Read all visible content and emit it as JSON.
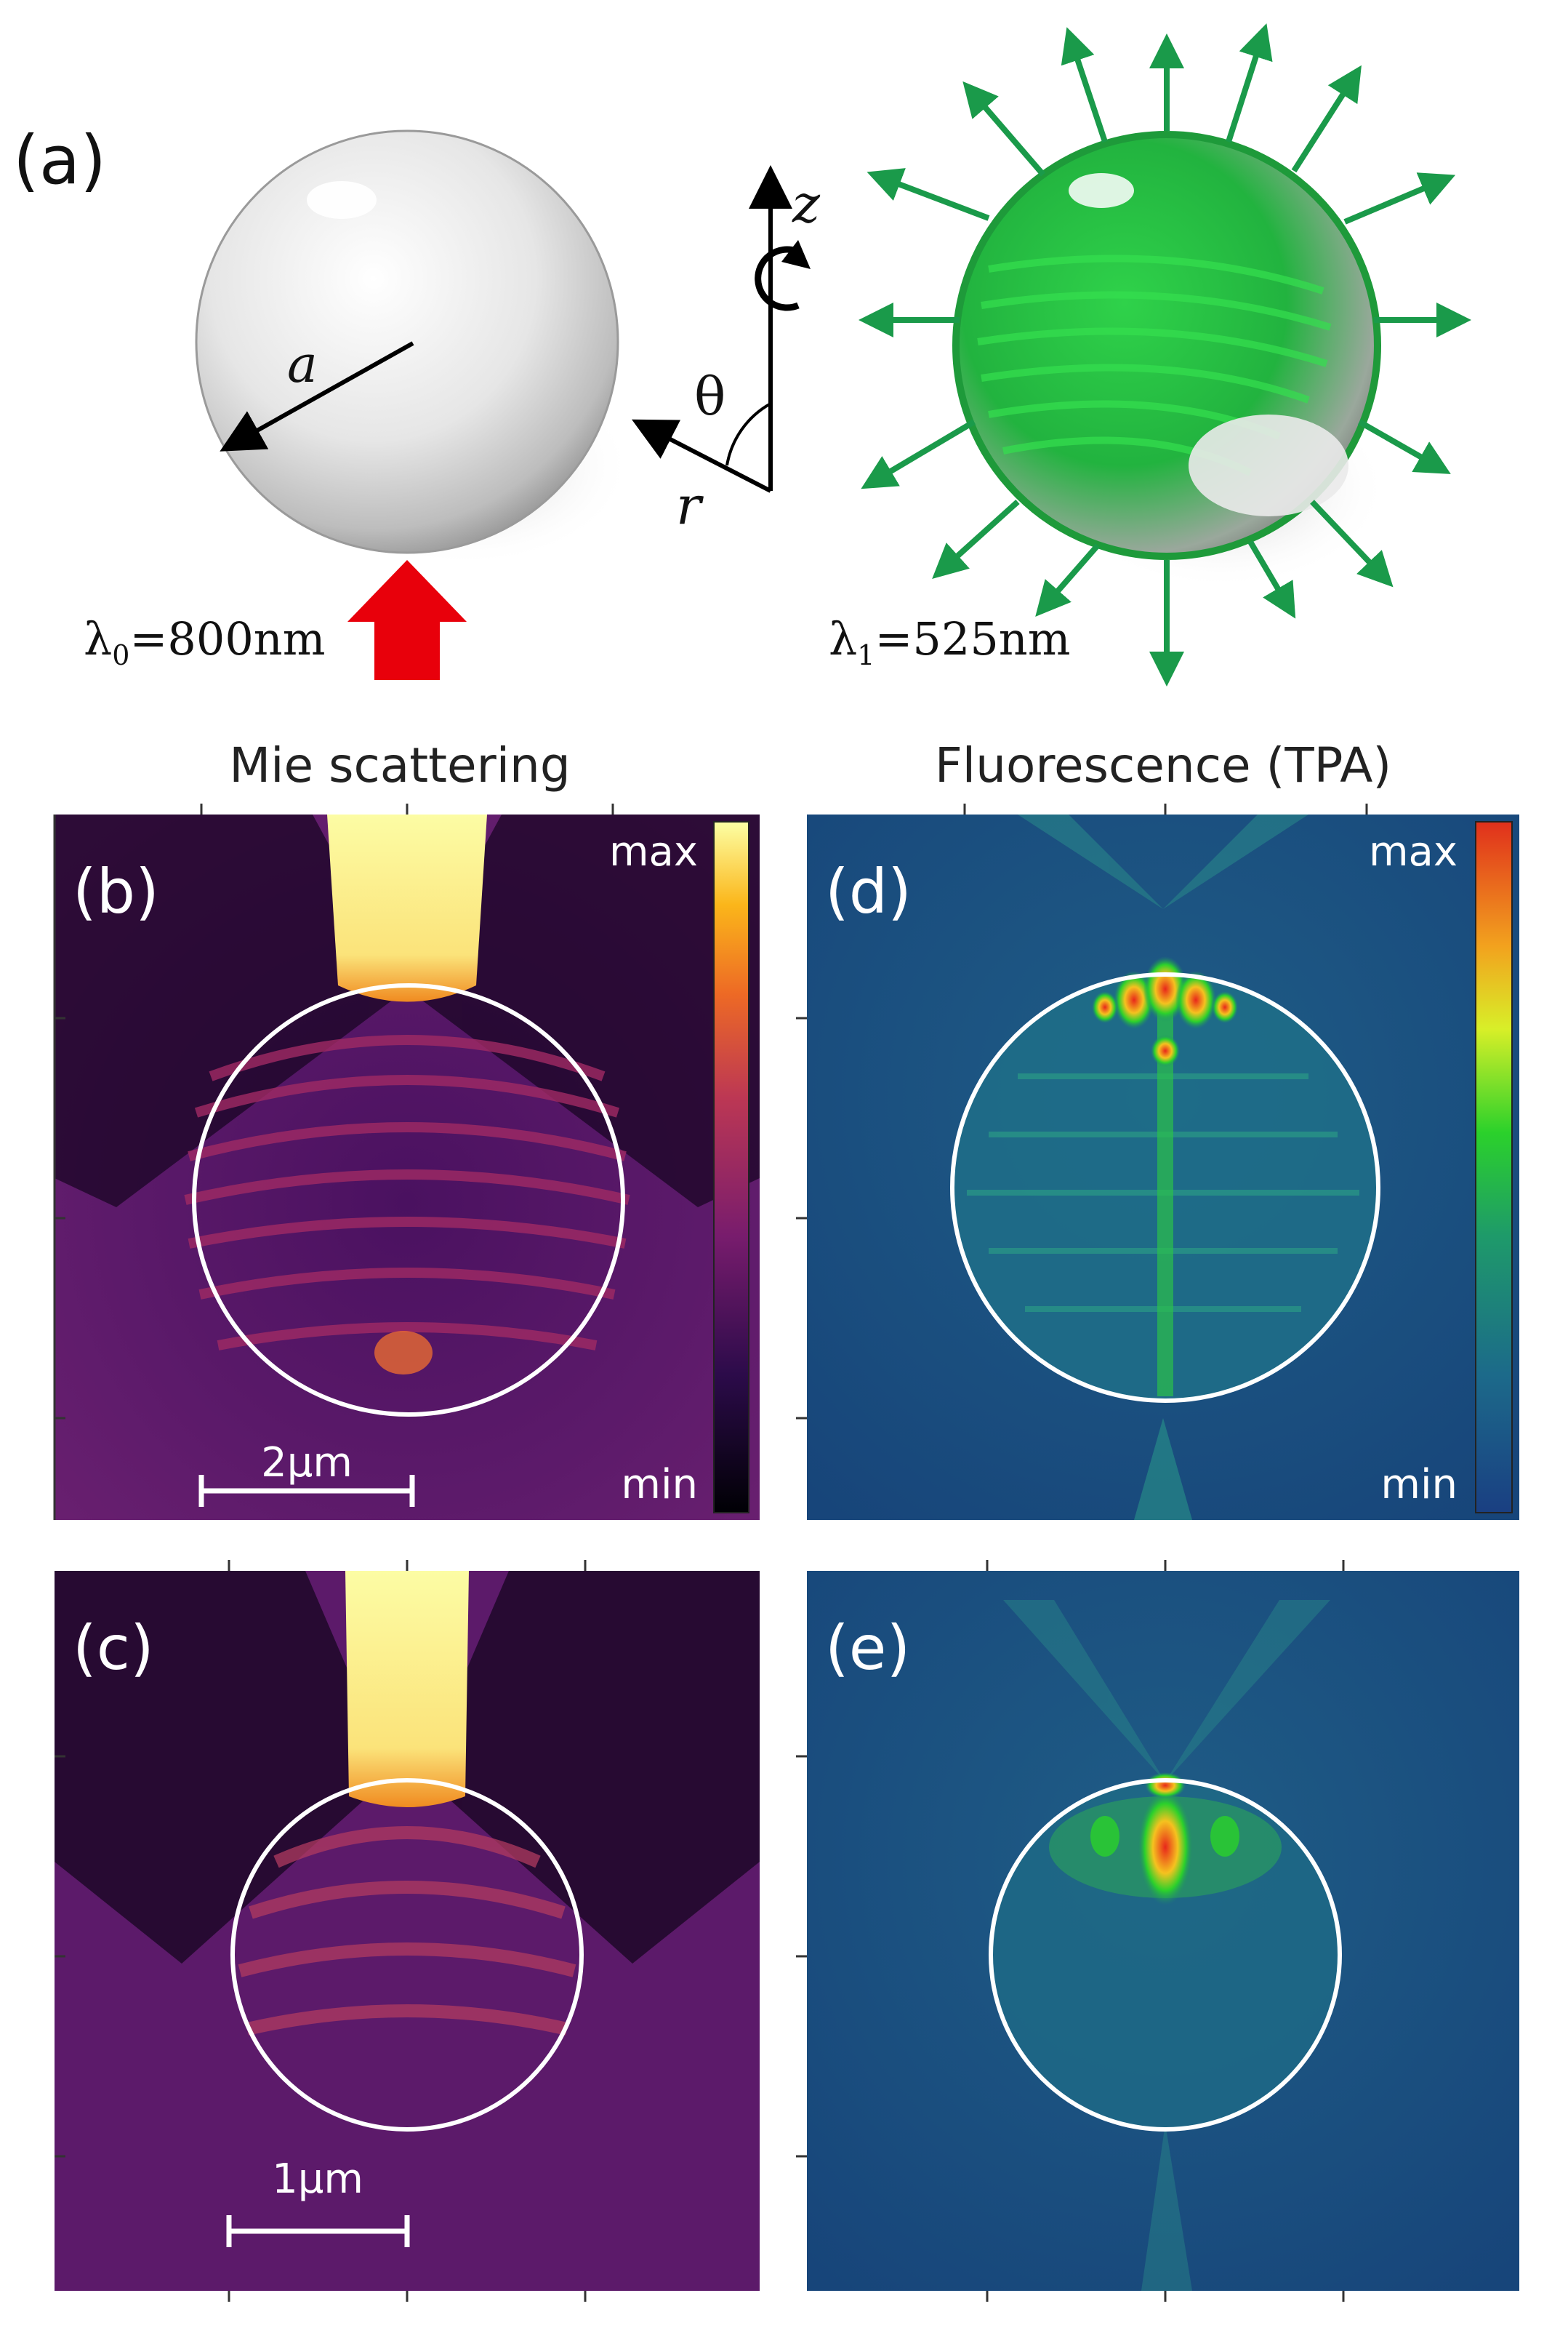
{
  "panel_a": {
    "label": "(a)",
    "radius_label": "a",
    "axis_z": "z",
    "axis_r": "r",
    "axis_theta": "θ",
    "lambda0": {
      "symbol": "λ",
      "sub": "0",
      "rest": "=800nm"
    },
    "lambda1": {
      "symbol": "λ",
      "sub": "1",
      "rest": "=525nm"
    }
  },
  "headers": {
    "left": "Mie scattering",
    "right": "Fluorescence (TPA)"
  },
  "panel_b": {
    "label": "(b)",
    "cbar_max": "max",
    "cbar_min": "min",
    "scale_bar": "2μm"
  },
  "panel_c": {
    "label": "(c)",
    "scale_bar": "1μm"
  },
  "panel_d": {
    "label": "(d)",
    "cbar_max": "max",
    "cbar_min": "min"
  },
  "panel_e": {
    "label": "(e)"
  },
  "colors": {
    "green_arrow": "#1a9a4a",
    "red_arrow": "#e8000b",
    "inferno_dark": "#14051f",
    "inferno_bright": "#fcfca4",
    "jet_blue": "#143c7a"
  }
}
